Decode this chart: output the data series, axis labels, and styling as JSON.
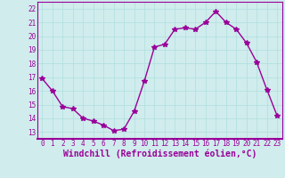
{
  "x": [
    0,
    1,
    2,
    3,
    4,
    5,
    6,
    7,
    8,
    9,
    10,
    11,
    12,
    13,
    14,
    15,
    16,
    17,
    18,
    19,
    20,
    21,
    22,
    23
  ],
  "y": [
    16.9,
    16.0,
    14.85,
    14.7,
    14.0,
    13.8,
    13.5,
    13.1,
    13.2,
    14.5,
    16.7,
    19.2,
    19.4,
    20.5,
    20.6,
    20.5,
    21.0,
    21.8,
    21.0,
    20.5,
    19.5,
    18.1,
    16.1,
    14.2
  ],
  "line_color": "#990099",
  "marker": "*",
  "markersize": 4,
  "linewidth": 1.0,
  "xlabel": "Windchill (Refroidissement éolien,°C)",
  "xlabel_fontsize": 7,
  "ylim": [
    12.5,
    22.5
  ],
  "xlim": [
    -0.5,
    23.5
  ],
  "yticks": [
    13,
    14,
    15,
    16,
    17,
    18,
    19,
    20,
    21,
    22
  ],
  "xticks": [
    0,
    1,
    2,
    3,
    4,
    5,
    6,
    7,
    8,
    9,
    10,
    11,
    12,
    13,
    14,
    15,
    16,
    17,
    18,
    19,
    20,
    21,
    22,
    23
  ],
  "grid_color": "#b0dede",
  "bg_color": "#d0ecec",
  "tick_color": "#990099",
  "tick_fontsize": 5.5,
  "spine_color": "#990099",
  "fig_width": 3.2,
  "fig_height": 2.0,
  "dpi": 100
}
